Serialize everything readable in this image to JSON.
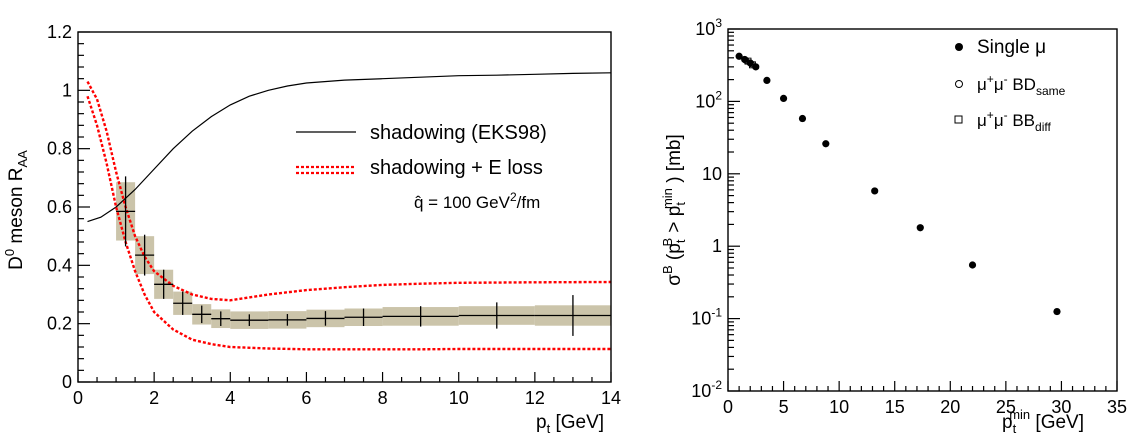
{
  "chart_data": [
    {
      "type": "line",
      "ylabel": "D0 meson RAA",
      "ylabel_parts": {
        "main": "D",
        "sup": "0",
        "mid": " meson R",
        "sub": "AA"
      },
      "xlabel": "p_t [GeV]",
      "xlabel_parts": {
        "main": "p",
        "sub": "t",
        "rest": " [GeV]"
      },
      "xlim": [
        0,
        14
      ],
      "ylim": [
        0,
        1.2
      ],
      "x_ticks": [
        "0",
        "2",
        "4",
        "6",
        "8",
        "10",
        "12",
        "14"
      ],
      "y_ticks": [
        "0",
        "0.2",
        "0.4",
        "0.6",
        "0.8",
        "1",
        "1.2"
      ],
      "annotation": {
        "prefix": "q̂ = 100 GeV",
        "sup": "2",
        "suffix": "/fm"
      },
      "legend": [
        {
          "label": "shadowing (EKS98)",
          "style": "solid-black"
        },
        {
          "label": "shadowing + E loss",
          "style": "dotted-red"
        }
      ],
      "series": [
        {
          "name": "shadowing (EKS98)",
          "color": "#000000",
          "x": [
            0.25,
            0.6,
            1,
            1.5,
            2,
            2.5,
            3,
            3.5,
            4,
            4.5,
            5,
            5.5,
            6,
            7,
            8,
            9,
            10,
            11,
            12,
            13,
            14
          ],
          "y": [
            0.55,
            0.565,
            0.6,
            0.66,
            0.73,
            0.8,
            0.86,
            0.91,
            0.95,
            0.98,
            1.0,
            1.015,
            1.025,
            1.035,
            1.04,
            1.045,
            1.05,
            1.052,
            1.055,
            1.058,
            1.06
          ]
        },
        {
          "name": "shadowing + E loss upper",
          "color": "#ff0000",
          "x": [
            0.25,
            0.5,
            0.75,
            1,
            1.25,
            1.5,
            1.75,
            2,
            2.5,
            3,
            3.5,
            4,
            5,
            6,
            7,
            8,
            9,
            10,
            12,
            14
          ],
          "y": [
            1.03,
            0.97,
            0.86,
            0.72,
            0.6,
            0.5,
            0.43,
            0.38,
            0.33,
            0.3,
            0.285,
            0.28,
            0.3,
            0.315,
            0.325,
            0.333,
            0.337,
            0.34,
            0.342,
            0.343
          ]
        },
        {
          "name": "shadowing + E loss lower",
          "color": "#ff0000",
          "x": [
            0.25,
            0.5,
            0.75,
            1,
            1.25,
            1.5,
            1.75,
            2,
            2.5,
            3,
            3.5,
            4,
            5,
            6,
            7,
            8,
            9,
            10,
            12,
            14
          ],
          "y": [
            0.98,
            0.88,
            0.75,
            0.6,
            0.48,
            0.38,
            0.3,
            0.24,
            0.18,
            0.145,
            0.13,
            0.12,
            0.115,
            0.112,
            0.112,
            0.112,
            0.112,
            0.113,
            0.113,
            0.113
          ]
        }
      ],
      "points": [
        {
          "x": 1.25,
          "y": 0.585,
          "stat": 0.12,
          "xerr": 0.25,
          "sys": 0.1
        },
        {
          "x": 1.75,
          "y": 0.435,
          "stat": 0.07,
          "xerr": 0.25,
          "sys": 0.065
        },
        {
          "x": 2.25,
          "y": 0.335,
          "stat": 0.05,
          "xerr": 0.25,
          "sys": 0.05
        },
        {
          "x": 2.75,
          "y": 0.27,
          "stat": 0.04,
          "xerr": 0.25,
          "sys": 0.04
        },
        {
          "x": 3.25,
          "y": 0.232,
          "stat": 0.03,
          "xerr": 0.25,
          "sys": 0.035
        },
        {
          "x": 3.75,
          "y": 0.217,
          "stat": 0.025,
          "xerr": 0.25,
          "sys": 0.032
        },
        {
          "x": 4.5,
          "y": 0.212,
          "stat": 0.02,
          "xerr": 0.5,
          "sys": 0.03
        },
        {
          "x": 5.5,
          "y": 0.213,
          "stat": 0.02,
          "xerr": 0.5,
          "sys": 0.03
        },
        {
          "x": 6.5,
          "y": 0.218,
          "stat": 0.025,
          "xerr": 0.5,
          "sys": 0.03
        },
        {
          "x": 7.5,
          "y": 0.222,
          "stat": 0.03,
          "xerr": 0.5,
          "sys": 0.03
        },
        {
          "x": 9,
          "y": 0.225,
          "stat": 0.035,
          "xerr": 1,
          "sys": 0.032
        },
        {
          "x": 11,
          "y": 0.228,
          "stat": 0.045,
          "xerr": 1,
          "sys": 0.032
        },
        {
          "x": 13,
          "y": 0.228,
          "stat": 0.07,
          "xerr": 1,
          "sys": 0.035
        }
      ]
    },
    {
      "type": "scatter",
      "xlabel": "pt min [GeV]",
      "xlabel_parts": {
        "main": "p",
        "sub": "t",
        "sup": "min",
        "rest": " [GeV]"
      },
      "ylabel": "σB (ptB > ptmin) [mb]",
      "xlim": [
        0,
        35
      ],
      "ylim": [
        0.01,
        1000
      ],
      "y_scale": "log",
      "x_ticks": [
        "0",
        "5",
        "10",
        "15",
        "20",
        "25",
        "30",
        "35"
      ],
      "y_ticks": [
        {
          "base": "10",
          "exp": "-2",
          "value": 0.01
        },
        {
          "base": "10",
          "exp": "-1",
          "value": 0.1
        },
        {
          "base": "1",
          "exp": "",
          "value": 1
        },
        {
          "base": "10",
          "exp": "",
          "value": 10
        },
        {
          "base": "10",
          "exp": "2",
          "value": 100
        },
        {
          "base": "10",
          "exp": "3",
          "value": 1000
        }
      ],
      "legend": [
        {
          "label": "Single μ",
          "marker": "filled-circle"
        },
        {
          "label": "μ+μ- BDsame",
          "marker": "open-circle"
        },
        {
          "label": "μ+μ- BBdiff",
          "marker": "open-square"
        }
      ],
      "series": [
        {
          "name": "Single μ",
          "marker": "filled-circle",
          "x": [
            1,
            1.5,
            2,
            2.5,
            3.5,
            5,
            6.7,
            8.8,
            13.2,
            17.3,
            22,
            29.6
          ],
          "y": [
            420,
            380,
            340,
            300,
            195,
            110,
            58,
            26,
            5.8,
            1.8,
            0.55,
            0.125
          ]
        },
        {
          "name": "μ+μ- BDsame",
          "marker": "open-circle",
          "x": [
            1.6,
            2.1
          ],
          "y": [
            370,
            330
          ]
        },
        {
          "name": "μ+μ- BBdiff",
          "marker": "open-square",
          "x": [
            1.8,
            2.2
          ],
          "y": [
            360,
            320
          ]
        }
      ]
    }
  ]
}
